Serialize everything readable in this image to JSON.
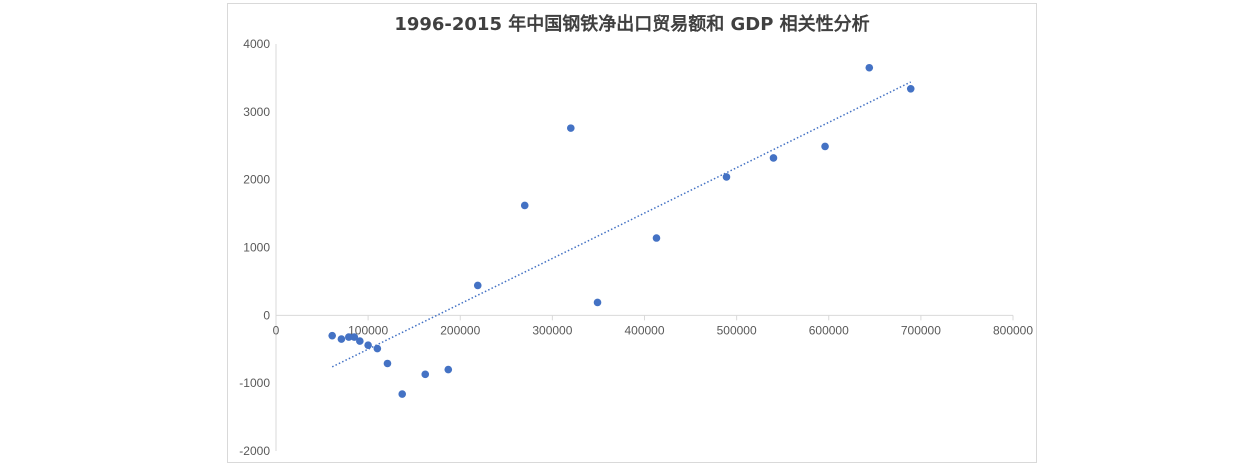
{
  "chart_data": {
    "type": "scatter",
    "title": "1996-2015 年中国钢铁净出口贸易额和 GDP 相关性分析",
    "xlabel": "",
    "ylabel": "",
    "xlim": [
      0,
      800000
    ],
    "ylim": [
      -2000,
      4000
    ],
    "xticks": [
      0,
      100000,
      200000,
      300000,
      400000,
      500000,
      600000,
      700000,
      800000
    ],
    "yticks": [
      -2000,
      -1000,
      0,
      1000,
      2000,
      3000,
      4000
    ],
    "grid": false,
    "legend": "none",
    "series": [
      {
        "color": "#4472c4",
        "points": [
          [
            61000,
            -300
          ],
          [
            71000,
            -350
          ],
          [
            79000,
            -320
          ],
          [
            85000,
            -320
          ],
          [
            91000,
            -380
          ],
          [
            100000,
            -440
          ],
          [
            110000,
            -490
          ],
          [
            121000,
            -710
          ],
          [
            137000,
            -1160
          ],
          [
            162000,
            -870
          ],
          [
            187000,
            -800
          ],
          [
            219000,
            440
          ],
          [
            270000,
            1620
          ],
          [
            320000,
            2760
          ],
          [
            349000,
            190
          ],
          [
            413000,
            1140
          ],
          [
            489000,
            2040
          ],
          [
            540000,
            2320
          ],
          [
            596000,
            2490
          ],
          [
            644000,
            3650
          ],
          [
            689000,
            3340
          ]
        ]
      }
    ],
    "trendline": {
      "type": "linear",
      "color": "#4472c4",
      "style": "dotted",
      "from": [
        61000,
        -760
      ],
      "to": [
        689000,
        3440
      ]
    }
  }
}
